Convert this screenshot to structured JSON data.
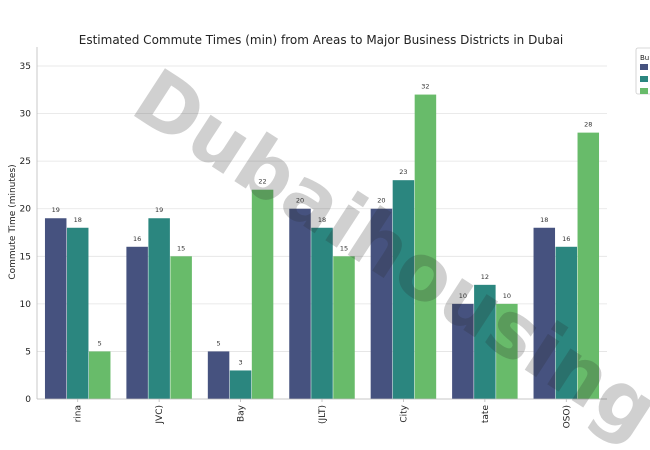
{
  "chart_data": {
    "type": "bar",
    "title": "Estimated Commute Times (min) from Areas to Major Business Districts in Dubai",
    "ylabel": "Commute Time (minutes)",
    "xlabel": "",
    "ylim": [
      0,
      37
    ],
    "yticks": [
      0,
      5,
      10,
      15,
      20,
      25,
      30,
      35
    ],
    "grid": "y",
    "legend_position": "top-right",
    "legend_title": "Bu",
    "categories": [
      "rina",
      "JVC)",
      "Bay",
      "(JLT)",
      "City",
      "tate",
      "OSO)"
    ],
    "series": [
      {
        "values": [
          19,
          16,
          5,
          20,
          20,
          10,
          18
        ],
        "color": "#46527f"
      },
      {
        "values": [
          18,
          19,
          3,
          18,
          23,
          12,
          16
        ],
        "color": "#2b867f"
      },
      {
        "values": [
          5,
          15,
          22,
          15,
          32,
          10,
          28
        ],
        "color": "#68bb6a"
      }
    ]
  },
  "watermark": "Dubaihousing"
}
